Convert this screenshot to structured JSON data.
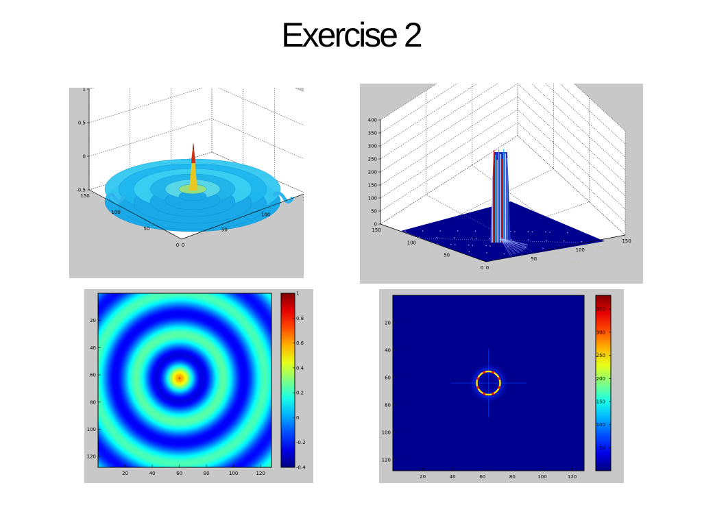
{
  "slide": {
    "title": "Exercise 2"
  },
  "colors": {
    "panel_bg": "#c8c8c8",
    "dark_blue": "#00008f"
  },
  "chart_data": [
    {
      "type": "surface",
      "x_ticks": [
        "0",
        "50",
        "100",
        "150"
      ],
      "y_ticks": [
        "0",
        "50",
        "100",
        "150"
      ],
      "z_ticks": [
        "-0.5",
        "0",
        "0.5",
        "1"
      ],
      "zlim": [
        -0.5,
        1
      ],
      "grid": true
    },
    {
      "type": "surface",
      "x_ticks": [
        "0",
        "50",
        "100",
        "150"
      ],
      "y_ticks": [
        "0",
        "50",
        "100",
        "150"
      ],
      "z_ticks": [
        "0",
        "50",
        "100",
        "150",
        "200",
        "250",
        "300",
        "350",
        "400"
      ],
      "zlim": [
        0,
        400
      ],
      "grid": true
    },
    {
      "type": "heatmap",
      "x_ticks": [
        "20",
        "40",
        "60",
        "80",
        "100",
        "120"
      ],
      "y_ticks": [
        "20",
        "40",
        "60",
        "80",
        "100",
        "120"
      ],
      "colorbar_ticks": [
        "1",
        "0.8",
        "0.6",
        "0.4",
        "0.2",
        "0",
        "-0.2",
        "-0.4"
      ],
      "colorbar_range": [
        -0.4,
        1
      ]
    },
    {
      "type": "heatmap",
      "x_ticks": [
        "20",
        "40",
        "60",
        "80",
        "100",
        "120"
      ],
      "y_ticks": [
        "20",
        "40",
        "60",
        "80",
        "100",
        "120"
      ],
      "colorbar_ticks": [
        "350",
        "300",
        "250",
        "200",
        "150",
        "100",
        "50"
      ],
      "colorbar_range": [
        0,
        380
      ]
    }
  ]
}
